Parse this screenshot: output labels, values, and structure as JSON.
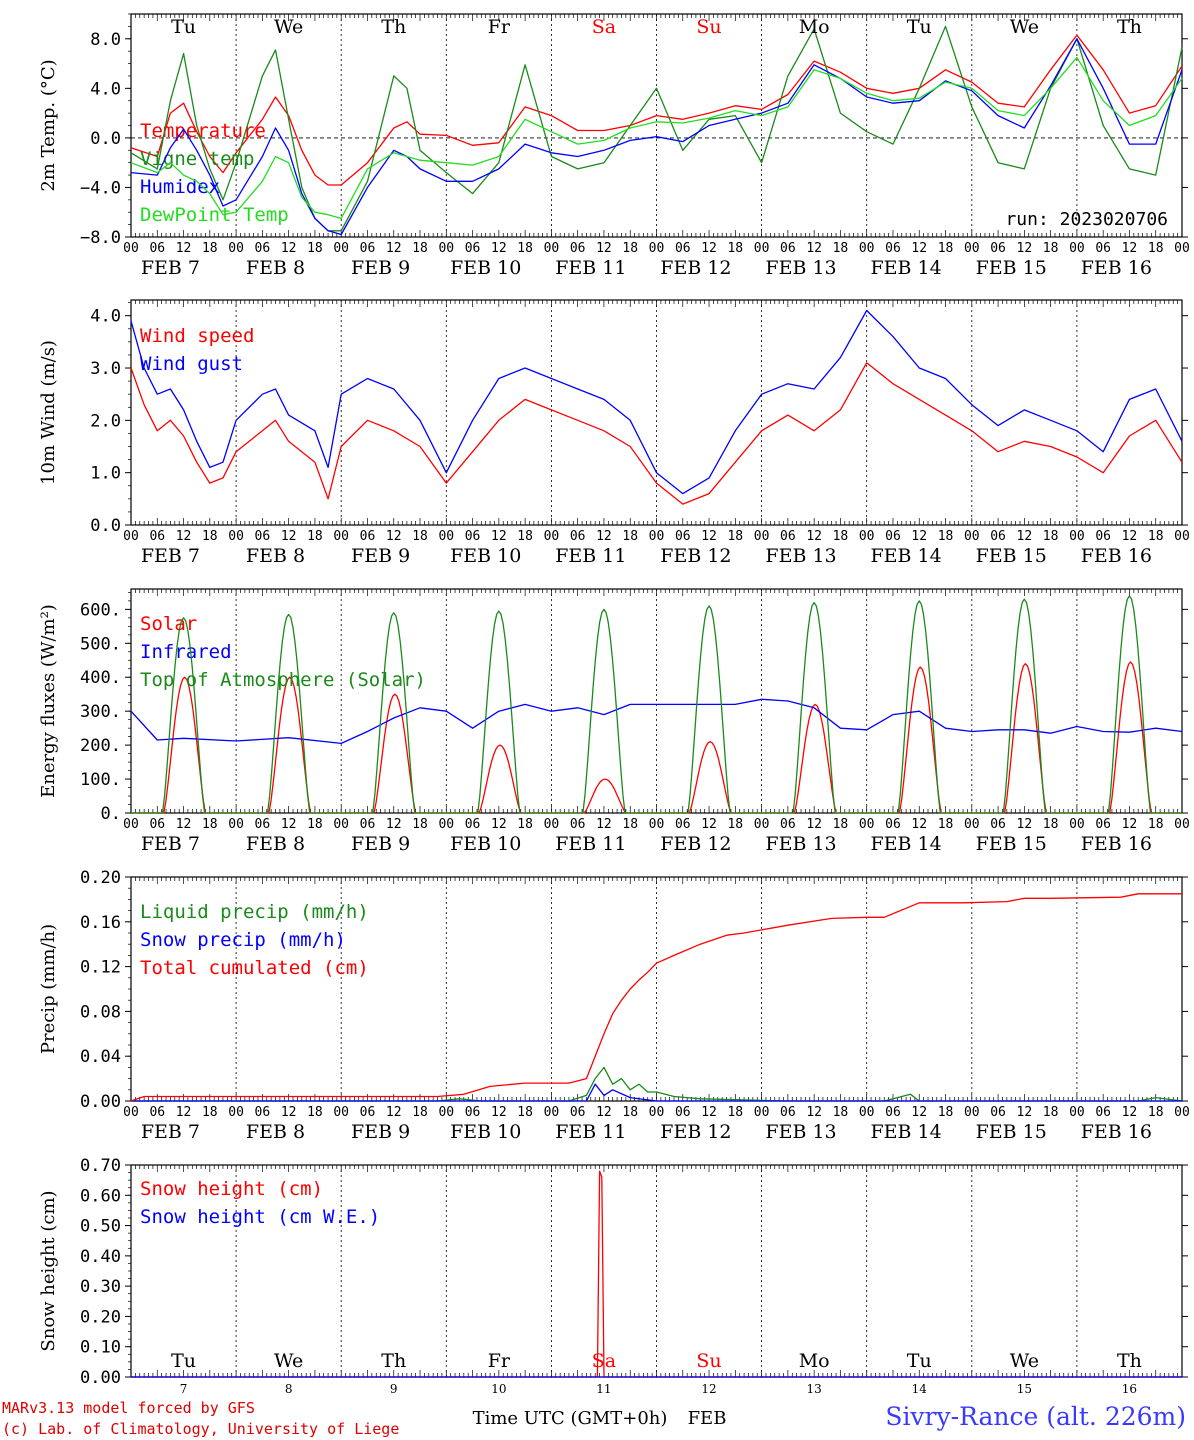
{
  "credits": {
    "line1": "MARv3.13 model forced by GFS",
    "line2": "(c) Lab. of Climatology, University of Liege"
  },
  "station": "Sivry-Rance (alt. 226m)",
  "xaxis_title": "Time UTC (GMT+0h)",
  "xaxis_month": "FEB",
  "run_label": "run: 2023020706",
  "colors": {
    "red": "#ff0000",
    "green": "#00a000",
    "darkgreen": "#1a8a1a",
    "blue": "#0000ff",
    "lightgreen": "#22dd22",
    "weekend": "#ff0000",
    "weekday": "#000000"
  },
  "days": [
    {
      "dow": "Tu",
      "date": "FEB  7",
      "num": "7"
    },
    {
      "dow": "We",
      "date": "FEB  8",
      "num": "8"
    },
    {
      "dow": "Th",
      "date": "FEB  9",
      "num": "9"
    },
    {
      "dow": "Fr",
      "date": "FEB 10",
      "num": "10"
    },
    {
      "dow": "Sa",
      "date": "FEB 11",
      "num": "11",
      "weekend": true
    },
    {
      "dow": "Su",
      "date": "FEB 12",
      "num": "12",
      "weekend": true
    },
    {
      "dow": "Mo",
      "date": "FEB 13",
      "num": "13"
    },
    {
      "dow": "Tu",
      "date": "FEB 14",
      "num": "14"
    },
    {
      "dow": "We",
      "date": "FEB 15",
      "num": "15"
    },
    {
      "dow": "Th",
      "date": "FEB 16",
      "num": "16"
    }
  ],
  "hour_labels": [
    "00",
    "06",
    "12",
    "18"
  ],
  "chart_data": [
    {
      "type": "line",
      "ylabel": "2m Temp. (°C)",
      "ylim": [
        -8,
        10
      ],
      "yticks": [
        -8,
        -4,
        0,
        4,
        8
      ],
      "ytick_labels": [
        "−8.0",
        "−4.0",
        "0.0",
        "4.0",
        "8.0"
      ],
      "zero_line": true,
      "show_dow": true,
      "x_unit": "hours since FEB 7 00 UTC",
      "series": [
        {
          "name": "Temperature",
          "color": "red",
          "x": [
            0,
            6,
            9,
            12,
            15,
            18,
            21,
            24,
            30,
            33,
            36,
            39,
            42,
            45,
            48,
            54,
            60,
            63,
            66,
            72,
            78,
            84,
            90,
            96,
            102,
            108,
            114,
            120,
            126,
            132,
            138,
            144,
            150,
            156,
            162,
            168,
            174,
            180,
            186,
            192,
            198,
            204,
            210,
            216,
            222,
            228,
            234,
            240
          ],
          "y": [
            -0.8,
            -1.5,
            2.0,
            2.8,
            0.5,
            -1.5,
            -2.8,
            -1.2,
            1.5,
            3.3,
            1.8,
            -1.0,
            -3.0,
            -3.8,
            -3.8,
            -2.0,
            0.8,
            1.3,
            0.3,
            0.2,
            -0.6,
            -0.4,
            2.5,
            1.8,
            0.6,
            0.6,
            1.0,
            1.8,
            1.5,
            2.0,
            2.6,
            2.3,
            3.5,
            6.2,
            5.3,
            4.0,
            3.6,
            4.0,
            5.5,
            4.5,
            2.8,
            2.5,
            5.5,
            8.3,
            5.5,
            2.0,
            2.6,
            5.8
          ]
        },
        {
          "name": "Vigne temp",
          "color": "darkgreen",
          "x": [
            0,
            6,
            9,
            12,
            15,
            18,
            21,
            24,
            30,
            33,
            36,
            39,
            42,
            45,
            48,
            54,
            60,
            63,
            66,
            72,
            78,
            84,
            90,
            96,
            102,
            108,
            114,
            120,
            126,
            132,
            138,
            144,
            150,
            156,
            162,
            168,
            174,
            180,
            186,
            192,
            198,
            204,
            210,
            216,
            222,
            228,
            234,
            240
          ],
          "y": [
            -1.2,
            -2.5,
            3.0,
            6.8,
            1.0,
            -2.5,
            -5.0,
            -2.0,
            5.0,
            7.1,
            1.5,
            -4.0,
            -6.5,
            -7.5,
            -7.5,
            -3.5,
            5.0,
            4.0,
            -1.0,
            -2.8,
            -4.5,
            -2.0,
            5.9,
            -1.5,
            -2.5,
            -2.0,
            1.0,
            4.0,
            -1.0,
            1.5,
            1.8,
            -2.0,
            5.0,
            8.8,
            2.0,
            0.5,
            -0.5,
            4.0,
            9.0,
            2.5,
            -2.0,
            -2.5,
            4.0,
            8.0,
            1.0,
            -2.5,
            -3.0,
            7.3
          ]
        },
        {
          "name": "Humidex",
          "color": "blue",
          "x": [
            0,
            6,
            9,
            12,
            15,
            18,
            21,
            24,
            30,
            33,
            36,
            39,
            42,
            45,
            48,
            54,
            60,
            63,
            66,
            72,
            78,
            84,
            90,
            96,
            102,
            108,
            114,
            120,
            126,
            132,
            138,
            144,
            150,
            156,
            162,
            168,
            174,
            180,
            186,
            192,
            198,
            204,
            210,
            216,
            222,
            228,
            234,
            240
          ],
          "y": [
            -2.8,
            -3.0,
            -0.8,
            0.7,
            -1.0,
            -3.0,
            -5.5,
            -5.0,
            -1.5,
            0.8,
            -1.0,
            -4.5,
            -6.5,
            -7.5,
            -7.8,
            -4.0,
            -1.0,
            -1.5,
            -2.5,
            -3.5,
            -3.5,
            -2.5,
            -0.5,
            -1.2,
            -1.5,
            -1.0,
            -0.2,
            0.1,
            -0.3,
            1.0,
            1.5,
            2.0,
            2.8,
            5.9,
            4.8,
            3.3,
            2.8,
            3.0,
            4.6,
            3.8,
            1.8,
            0.8,
            4.2,
            8.0,
            4.0,
            -0.5,
            -0.5,
            5.5
          ]
        },
        {
          "name": "DewPoint Temp",
          "color": "lightgreen",
          "x": [
            0,
            6,
            9,
            12,
            15,
            18,
            21,
            24,
            30,
            33,
            36,
            39,
            42,
            45,
            48,
            54,
            60,
            63,
            66,
            72,
            78,
            84,
            90,
            96,
            102,
            108,
            114,
            120,
            126,
            132,
            138,
            144,
            150,
            156,
            162,
            168,
            174,
            180,
            186,
            192,
            198,
            204,
            210,
            216,
            222,
            228,
            234,
            240
          ],
          "y": [
            -2.0,
            -2.8,
            -2.0,
            -3.0,
            -3.5,
            -4.5,
            -6.2,
            -6.0,
            -3.5,
            -1.5,
            -2.0,
            -4.8,
            -6.0,
            -6.2,
            -6.5,
            -2.5,
            -1.2,
            -1.5,
            -1.8,
            -2.0,
            -2.2,
            -1.5,
            1.5,
            0.5,
            -0.5,
            -0.2,
            0.8,
            1.3,
            1.2,
            1.6,
            2.2,
            1.8,
            2.5,
            5.5,
            4.8,
            3.6,
            3.0,
            3.2,
            4.5,
            4.0,
            2.2,
            1.8,
            4.0,
            6.5,
            3.0,
            1.0,
            1.8,
            4.8
          ]
        }
      ]
    },
    {
      "type": "line",
      "ylabel": "10m Wind (m/s)",
      "ylim": [
        0,
        4.3
      ],
      "yticks": [
        0,
        1,
        2,
        3,
        4
      ],
      "ytick_labels": [
        "0.0",
        "1.0",
        "2.0",
        "3.0",
        "4.0"
      ],
      "show_dow": false,
      "x_unit": "hours since FEB 7 00 UTC",
      "series": [
        {
          "name": "Wind speed",
          "color": "red",
          "x": [
            0,
            3,
            6,
            9,
            12,
            15,
            18,
            21,
            24,
            30,
            33,
            36,
            42,
            45,
            48,
            54,
            60,
            66,
            72,
            78,
            84,
            90,
            96,
            102,
            108,
            114,
            120,
            126,
            132,
            138,
            144,
            150,
            156,
            162,
            168,
            174,
            180,
            186,
            192,
            198,
            204,
            210,
            216,
            222,
            228,
            234,
            240
          ],
          "y": [
            3.0,
            2.3,
            1.8,
            2.0,
            1.7,
            1.2,
            0.8,
            0.9,
            1.4,
            1.8,
            2.0,
            1.6,
            1.2,
            0.5,
            1.5,
            2.0,
            1.8,
            1.5,
            0.8,
            1.4,
            2.0,
            2.4,
            2.2,
            2.0,
            1.8,
            1.5,
            0.8,
            0.4,
            0.6,
            1.2,
            1.8,
            2.1,
            1.8,
            2.2,
            3.1,
            2.7,
            2.4,
            2.1,
            1.8,
            1.4,
            1.6,
            1.5,
            1.3,
            1.0,
            1.7,
            2.0,
            1.2
          ]
        },
        {
          "name": "Wind gust",
          "color": "blue",
          "x": [
            0,
            3,
            6,
            9,
            12,
            15,
            18,
            21,
            24,
            30,
            33,
            36,
            42,
            45,
            48,
            54,
            60,
            66,
            72,
            78,
            84,
            90,
            96,
            102,
            108,
            114,
            120,
            126,
            132,
            138,
            144,
            150,
            156,
            162,
            168,
            174,
            180,
            186,
            192,
            198,
            204,
            210,
            216,
            222,
            228,
            234,
            240
          ],
          "y": [
            3.9,
            3.0,
            2.5,
            2.6,
            2.2,
            1.6,
            1.1,
            1.2,
            2.0,
            2.5,
            2.6,
            2.1,
            1.8,
            1.1,
            2.5,
            2.8,
            2.6,
            2.0,
            1.0,
            2.0,
            2.8,
            3.0,
            2.8,
            2.6,
            2.4,
            2.0,
            1.0,
            0.6,
            0.9,
            1.8,
            2.5,
            2.7,
            2.6,
            3.2,
            4.1,
            3.6,
            3.0,
            2.8,
            2.3,
            1.9,
            2.2,
            2.0,
            1.8,
            1.4,
            2.4,
            2.6,
            1.6
          ]
        }
      ]
    },
    {
      "type": "line",
      "ylabel": "Energy fluxes (W/m²)",
      "ylim": [
        0,
        660
      ],
      "yticks": [
        0,
        100,
        200,
        300,
        400,
        500,
        600
      ],
      "ytick_labels": [
        "0.",
        "100.",
        "200.",
        "300.",
        "400.",
        "500.",
        "600."
      ],
      "show_dow": false,
      "x_unit": "hours since FEB 7 00 UTC",
      "series": [
        {
          "name": "Solar",
          "color": "red",
          "kind": "diurnal",
          "start_h": 7.5,
          "end_h": 17.0,
          "peaks": [
            400,
            400,
            350,
            200,
            100,
            210,
            320,
            430,
            440,
            445
          ]
        },
        {
          "name": "Infrared",
          "color": "blue",
          "x": [
            0,
            6,
            12,
            24,
            36,
            48,
            54,
            60,
            66,
            72,
            78,
            84,
            90,
            96,
            102,
            108,
            114,
            120,
            126,
            132,
            138,
            144,
            150,
            156,
            162,
            168,
            174,
            180,
            186,
            192,
            198,
            204,
            210,
            216,
            222,
            228,
            234,
            240
          ],
          "y": [
            300,
            215,
            220,
            212,
            222,
            205,
            240,
            280,
            310,
            300,
            250,
            300,
            320,
            300,
            310,
            290,
            320,
            320,
            320,
            320,
            320,
            335,
            330,
            310,
            250,
            245,
            290,
            300,
            250,
            240,
            245,
            245,
            235,
            255,
            240,
            238,
            250,
            240
          ]
        },
        {
          "name": "Top of Atmosphere (Solar)",
          "color": "darkgreen",
          "kind": "diurnal",
          "start_h": 7.2,
          "end_h": 16.8,
          "peaks": [
            575,
            585,
            590,
            595,
            600,
            610,
            620,
            625,
            630,
            640
          ]
        }
      ]
    },
    {
      "type": "line",
      "ylabel": "Precip (mm/h)",
      "ylim": [
        0,
        0.2
      ],
      "yticks": [
        0,
        0.04,
        0.08,
        0.12,
        0.16,
        0.2
      ],
      "ytick_labels": [
        "0.00",
        "0.04",
        "0.08",
        "0.12",
        "0.16",
        "0.20"
      ],
      "show_dow": false,
      "x_unit": "hours since FEB 7 00 UTC",
      "series": [
        {
          "name": "Liquid precip (mm/h)",
          "color": "darkgreen",
          "x": [
            0,
            70,
            75,
            80,
            100,
            104,
            106,
            108,
            110,
            112,
            114,
            116,
            118,
            120,
            124,
            130,
            140,
            150,
            160,
            172,
            178,
            180,
            190,
            210,
            220,
            230,
            234,
            240
          ],
          "y": [
            0,
            0,
            0.002,
            0,
            0,
            0.005,
            0.02,
            0.03,
            0.015,
            0.02,
            0.01,
            0.015,
            0.008,
            0.008,
            0.004,
            0.002,
            0.001,
            0,
            0,
            0,
            0.006,
            0,
            0,
            0,
            0,
            0,
            0.003,
            0
          ]
        },
        {
          "name": "Snow precip (mm/h)",
          "color": "blue",
          "x": [
            0,
            104,
            106,
            108,
            110,
            114,
            120,
            240
          ],
          "y": [
            0,
            0,
            0.015,
            0.005,
            0.01,
            0.003,
            0,
            0
          ]
        },
        {
          "name": "Total cumulated (cm)",
          "color": "red",
          "x": [
            0,
            3,
            70,
            76,
            82,
            90,
            100,
            104,
            106,
            108,
            110,
            112,
            114,
            116,
            118,
            120,
            124,
            130,
            136,
            140,
            150,
            160,
            168,
            172,
            180,
            190,
            200,
            204,
            210,
            226,
            230,
            240
          ],
          "y": [
            0,
            0.004,
            0.004,
            0.006,
            0.013,
            0.016,
            0.016,
            0.02,
            0.04,
            0.06,
            0.078,
            0.09,
            0.1,
            0.108,
            0.115,
            0.123,
            0.13,
            0.14,
            0.148,
            0.15,
            0.157,
            0.163,
            0.164,
            0.164,
            0.177,
            0.177,
            0.178,
            0.181,
            0.181,
            0.182,
            0.185,
            0.185
          ]
        }
      ]
    },
    {
      "type": "line",
      "ylabel": "Snow height (cm)",
      "ylim": [
        0,
        0.7
      ],
      "yticks": [
        0,
        0.1,
        0.2,
        0.3,
        0.4,
        0.5,
        0.6,
        0.7
      ],
      "ytick_labels": [
        "0.00",
        "0.10",
        "0.20",
        "0.30",
        "0.40",
        "0.50",
        "0.60",
        "0.70"
      ],
      "show_dow": true,
      "show_hours": false,
      "x_unit": "hours since FEB 7 00 UTC",
      "series": [
        {
          "name": "Snow height (cm)",
          "color": "red",
          "x": [
            0,
            106.5,
            107,
            107.5,
            108,
            108.5,
            240
          ],
          "y": [
            0,
            0,
            0.68,
            0.66,
            0.0,
            0,
            0
          ]
        },
        {
          "name": "Snow height (cm W.E.)",
          "color": "blue",
          "x": [
            0,
            240
          ],
          "y": [
            0,
            0
          ]
        }
      ]
    }
  ]
}
